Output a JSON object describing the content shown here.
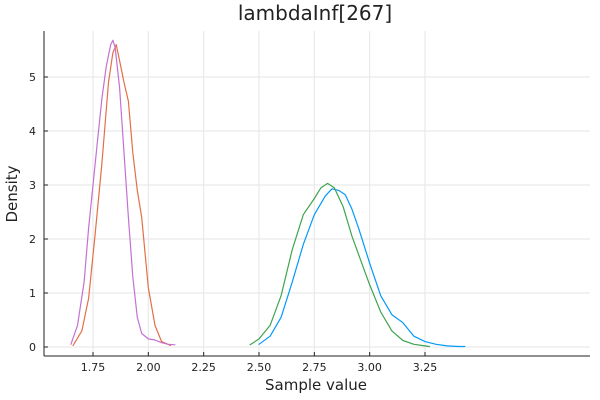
{
  "chart_data": {
    "type": "line",
    "title": "lambdaInf[267]",
    "xlabel": "Sample value",
    "ylabel": "Density",
    "xlim": [
      1.6,
      3.45
    ],
    "ylim": [
      0,
      5.8
    ],
    "xticks": [
      1.75,
      2.0,
      2.25,
      2.5,
      2.75,
      3.0,
      3.25
    ],
    "xtick_labels": [
      "1.75",
      "2.00",
      "2.25",
      "2.50",
      "2.75",
      "3.00",
      "3.25"
    ],
    "yticks": [
      0,
      1,
      2,
      3,
      4,
      5
    ],
    "ytick_labels": [
      "0",
      "1",
      "2",
      "3",
      "4",
      "5"
    ],
    "grid": true,
    "legend": "none",
    "series": [
      {
        "color": "#009AFA",
        "x": [
          2.5,
          2.55,
          2.6,
          2.65,
          2.7,
          2.75,
          2.8,
          2.83,
          2.86,
          2.89,
          2.92,
          2.95,
          3.0,
          3.05,
          3.1,
          3.15,
          3.2,
          3.25,
          3.3,
          3.35,
          3.4,
          3.43
        ],
        "y": [
          0.05,
          0.2,
          0.55,
          1.2,
          1.9,
          2.45,
          2.8,
          2.93,
          2.9,
          2.82,
          2.55,
          2.2,
          1.55,
          0.95,
          0.6,
          0.45,
          0.2,
          0.1,
          0.05,
          0.02,
          0.01,
          0.01
        ]
      },
      {
        "color": "#E36F47",
        "x": [
          1.66,
          1.7,
          1.73,
          1.76,
          1.79,
          1.82,
          1.84,
          1.855,
          1.87,
          1.89,
          1.91,
          1.93,
          1.95,
          1.97,
          2.0,
          2.03,
          2.06,
          2.1
        ],
        "y": [
          0.03,
          0.3,
          0.9,
          2.1,
          3.4,
          4.9,
          5.45,
          5.6,
          5.3,
          4.9,
          4.55,
          3.6,
          2.9,
          2.4,
          1.1,
          0.4,
          0.1,
          0.03
        ]
      },
      {
        "color": "#3EA44E",
        "x": [
          2.46,
          2.5,
          2.55,
          2.6,
          2.65,
          2.7,
          2.75,
          2.78,
          2.81,
          2.84,
          2.88,
          2.92,
          2.96,
          3.0,
          3.05,
          3.1,
          3.15,
          3.2,
          3.25,
          3.27
        ],
        "y": [
          0.04,
          0.15,
          0.4,
          0.95,
          1.8,
          2.45,
          2.75,
          2.95,
          3.03,
          2.95,
          2.6,
          2.05,
          1.6,
          1.15,
          0.65,
          0.3,
          0.12,
          0.05,
          0.02,
          0.01
        ]
      },
      {
        "color": "#C371D2",
        "x": [
          1.65,
          1.68,
          1.71,
          1.73,
          1.75,
          1.77,
          1.79,
          1.81,
          1.83,
          1.84,
          1.85,
          1.87,
          1.89,
          1.91,
          1.93,
          1.95,
          1.97,
          2.0,
          2.03,
          2.06,
          2.09,
          2.12
        ],
        "y": [
          0.05,
          0.4,
          1.2,
          2.2,
          3.0,
          3.8,
          4.6,
          5.2,
          5.6,
          5.68,
          5.55,
          4.8,
          3.6,
          2.4,
          1.3,
          0.55,
          0.25,
          0.15,
          0.13,
          0.08,
          0.05,
          0.04
        ]
      }
    ]
  }
}
